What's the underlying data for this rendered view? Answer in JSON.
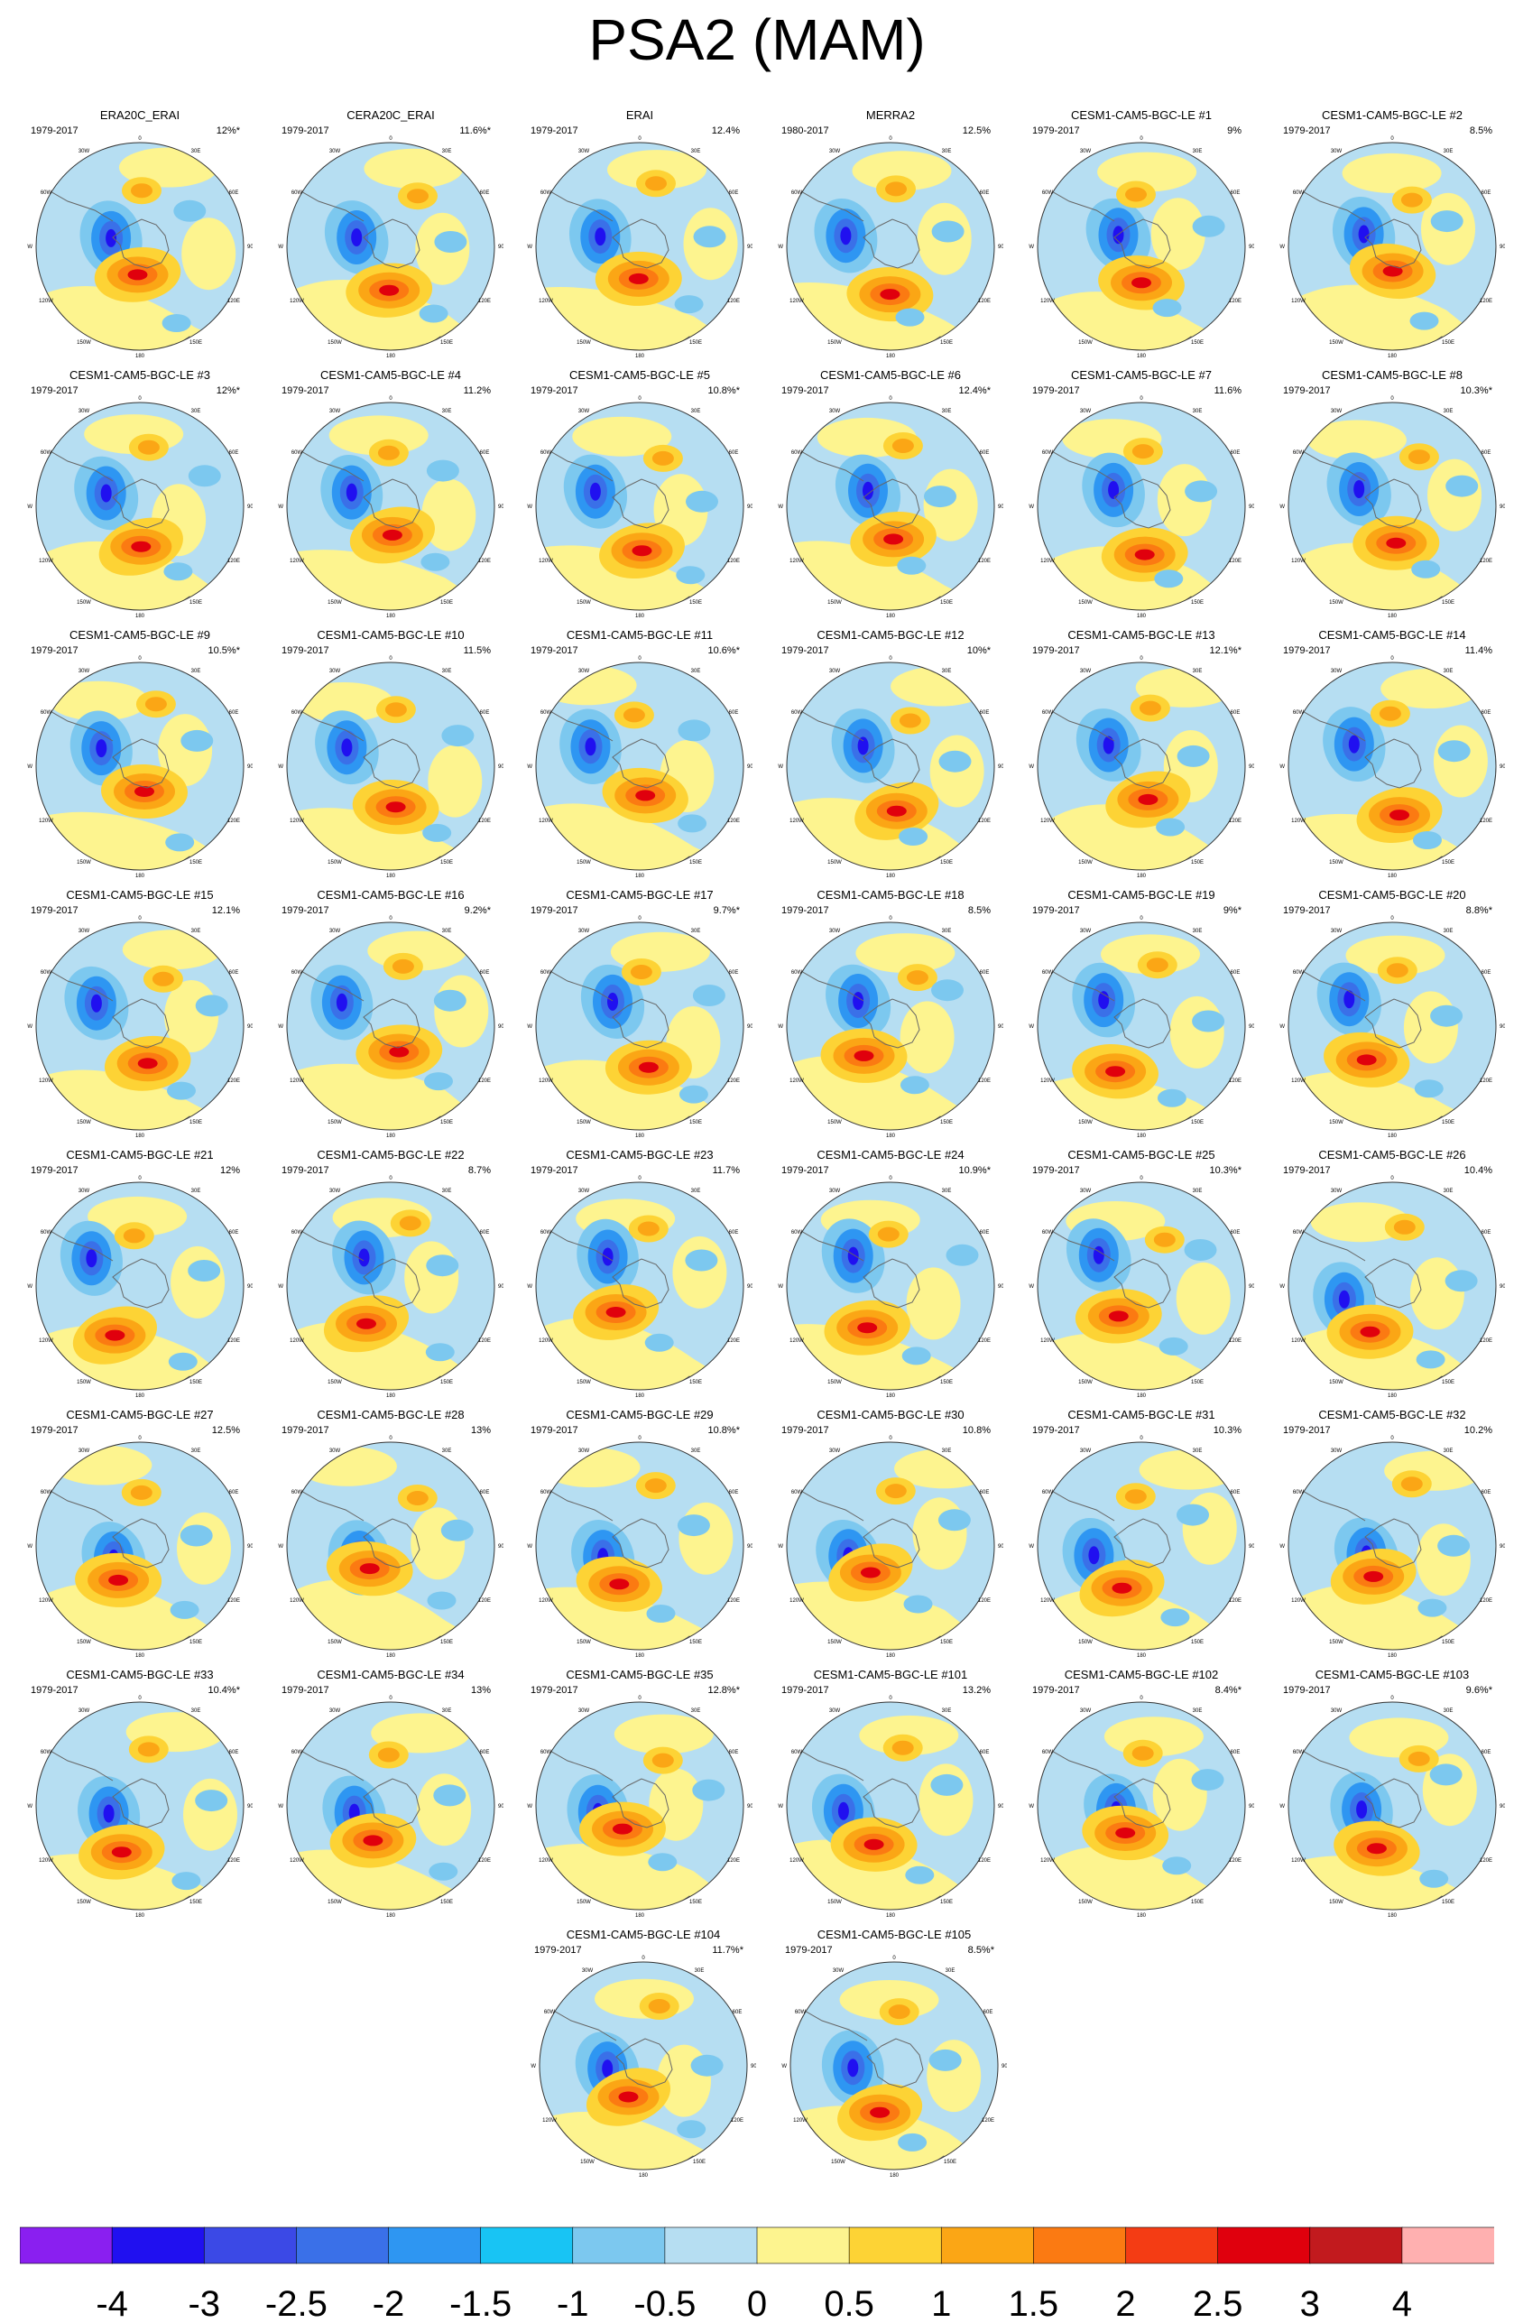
{
  "title": "PSA2 (MAM)",
  "panels": [
    {
      "name": "ERA20C_ERAI",
      "period": "1979-2017",
      "pct": "12%*"
    },
    {
      "name": "CERA20C_ERAI",
      "period": "1979-2017",
      "pct": "11.6%*"
    },
    {
      "name": "ERAI",
      "period": "1979-2017",
      "pct": "12.4%"
    },
    {
      "name": "MERRA2",
      "period": "1980-2017",
      "pct": "12.5%"
    },
    {
      "name": "CESM1-CAM5-BGC-LE #1",
      "period": "1979-2017",
      "pct": "9%"
    },
    {
      "name": "CESM1-CAM5-BGC-LE #2",
      "period": "1979-2017",
      "pct": "8.5%"
    },
    {
      "name": "CESM1-CAM5-BGC-LE #3",
      "period": "1979-2017",
      "pct": "12%*"
    },
    {
      "name": "CESM1-CAM5-BGC-LE #4",
      "period": "1979-2017",
      "pct": "11.2%"
    },
    {
      "name": "CESM1-CAM5-BGC-LE #5",
      "period": "1979-2017",
      "pct": "10.8%*"
    },
    {
      "name": "CESM1-CAM5-BGC-LE #6",
      "period": "1979-2017",
      "pct": "12.4%*"
    },
    {
      "name": "CESM1-CAM5-BGC-LE #7",
      "period": "1979-2017",
      "pct": "11.6%"
    },
    {
      "name": "CESM1-CAM5-BGC-LE #8",
      "period": "1979-2017",
      "pct": "10.3%*"
    },
    {
      "name": "CESM1-CAM5-BGC-LE #9",
      "period": "1979-2017",
      "pct": "10.5%*"
    },
    {
      "name": "CESM1-CAM5-BGC-LE #10",
      "period": "1979-2017",
      "pct": "11.5%"
    },
    {
      "name": "CESM1-CAM5-BGC-LE #11",
      "period": "1979-2017",
      "pct": "10.6%*"
    },
    {
      "name": "CESM1-CAM5-BGC-LE #12",
      "period": "1979-2017",
      "pct": "10%*"
    },
    {
      "name": "CESM1-CAM5-BGC-LE #13",
      "period": "1979-2017",
      "pct": "12.1%*"
    },
    {
      "name": "CESM1-CAM5-BGC-LE #14",
      "period": "1979-2017",
      "pct": "11.4%"
    },
    {
      "name": "CESM1-CAM5-BGC-LE #15",
      "period": "1979-2017",
      "pct": "12.1%"
    },
    {
      "name": "CESM1-CAM5-BGC-LE #16",
      "period": "1979-2017",
      "pct": "9.2%*"
    },
    {
      "name": "CESM1-CAM5-BGC-LE #17",
      "period": "1979-2017",
      "pct": "9.7%*"
    },
    {
      "name": "CESM1-CAM5-BGC-LE #18",
      "period": "1979-2017",
      "pct": "8.5%"
    },
    {
      "name": "CESM1-CAM5-BGC-LE #19",
      "period": "1979-2017",
      "pct": "9%*"
    },
    {
      "name": "CESM1-CAM5-BGC-LE #20",
      "period": "1979-2017",
      "pct": "8.8%*"
    },
    {
      "name": "CESM1-CAM5-BGC-LE #21",
      "period": "1979-2017",
      "pct": "12%"
    },
    {
      "name": "CESM1-CAM5-BGC-LE #22",
      "period": "1979-2017",
      "pct": "8.7%"
    },
    {
      "name": "CESM1-CAM5-BGC-LE #23",
      "period": "1979-2017",
      "pct": "11.7%"
    },
    {
      "name": "CESM1-CAM5-BGC-LE #24",
      "period": "1979-2017",
      "pct": "10.9%*"
    },
    {
      "name": "CESM1-CAM5-BGC-LE #25",
      "period": "1979-2017",
      "pct": "10.3%*"
    },
    {
      "name": "CESM1-CAM5-BGC-LE #26",
      "period": "1979-2017",
      "pct": "10.4%"
    },
    {
      "name": "CESM1-CAM5-BGC-LE #27",
      "period": "1979-2017",
      "pct": "12.5%"
    },
    {
      "name": "CESM1-CAM5-BGC-LE #28",
      "period": "1979-2017",
      "pct": "13%"
    },
    {
      "name": "CESM1-CAM5-BGC-LE #29",
      "period": "1979-2017",
      "pct": "10.8%*"
    },
    {
      "name": "CESM1-CAM5-BGC-LE #30",
      "period": "1979-2017",
      "pct": "10.8%"
    },
    {
      "name": "CESM1-CAM5-BGC-LE #31",
      "period": "1979-2017",
      "pct": "10.3%"
    },
    {
      "name": "CESM1-CAM5-BGC-LE #32",
      "period": "1979-2017",
      "pct": "10.2%"
    },
    {
      "name": "CESM1-CAM5-BGC-LE #33",
      "period": "1979-2017",
      "pct": "10.4%*"
    },
    {
      "name": "CESM1-CAM5-BGC-LE #34",
      "period": "1979-2017",
      "pct": "13%"
    },
    {
      "name": "CESM1-CAM5-BGC-LE #35",
      "period": "1979-2017",
      "pct": "12.8%*"
    },
    {
      "name": "CESM1-CAM5-BGC-LE #101",
      "period": "1979-2017",
      "pct": "13.2%"
    },
    {
      "name": "CESM1-CAM5-BGC-LE #102",
      "period": "1979-2017",
      "pct": "8.4%*"
    },
    {
      "name": "CESM1-CAM5-BGC-LE #103",
      "period": "1979-2017",
      "pct": "9.6%*"
    },
    {
      "name": "CESM1-CAM5-BGC-LE #104",
      "period": "1979-2017",
      "pct": "11.7%*"
    },
    {
      "name": "CESM1-CAM5-BGC-LE #105",
      "period": "1979-2017",
      "pct": "8.5%*"
    }
  ],
  "map_labels": {
    "lon_top": "0",
    "lon_30w": "30W",
    "lon_30e": "30E",
    "lon_60w": "60W",
    "lon_60e": "60E",
    "lon_90w": "90W",
    "lon_90e": "90E",
    "lon_120w": "120W",
    "lon_120e": "120E",
    "lon_150w": "150W",
    "lon_150e": "150E",
    "lon_bottom": "180"
  },
  "colorbar": {
    "labels": [
      "-4",
      "-3",
      "-2.5",
      "-2",
      "-1.5",
      "-1",
      "-0.5",
      "0",
      "0.5",
      "1",
      "1.5",
      "2",
      "2.5",
      "3",
      "4"
    ],
    "colors": [
      "#8a1ff0",
      "#2010f0",
      "#3b49e6",
      "#3a70e8",
      "#2e96f2",
      "#18c4f4",
      "#7cc8ef",
      "#b6def2",
      "#fdf48f",
      "#fdd335",
      "#fba615",
      "#fb7a12",
      "#f43c14",
      "#e0000d",
      "#c21a1e",
      "#ffb0b0"
    ]
  }
}
